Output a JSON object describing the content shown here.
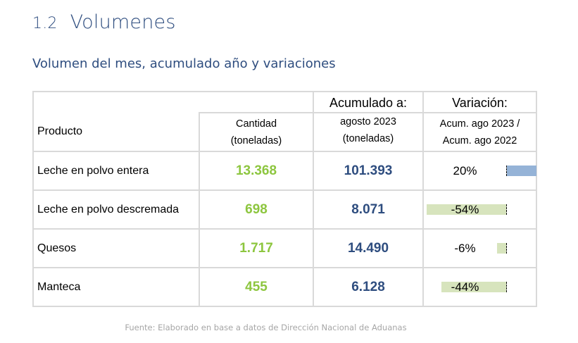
{
  "section": {
    "number": "1.2",
    "title": "Volumenes"
  },
  "subtitle": "Volumen del mes, acumulado año y variaciones",
  "table": {
    "header": {
      "product": "Producto",
      "cantidad_line1": "Cantidad",
      "cantidad_line2": "(toneladas)",
      "acumulado_title": "Acumulado a:",
      "acumulado_line1": "agosto 2023",
      "acumulado_line2": "(toneladas)",
      "variacion_title": "Variación:",
      "variacion_line1": "Acum. ago 2023 /",
      "variacion_line2": "Acum. ago 2022"
    },
    "rows": [
      {
        "product": "Leche en polvo entera",
        "cantidad": "13.368",
        "acumulado": "101.393",
        "variacion": "20%",
        "variacion_value": 20
      },
      {
        "product": "Leche en polvo descremada",
        "cantidad": "698",
        "acumulado": "8.071",
        "variacion": "-54%",
        "variacion_value": -54
      },
      {
        "product": "Quesos",
        "cantidad": "1.717",
        "acumulado": "14.490",
        "variacion": "-6%",
        "variacion_value": -6
      },
      {
        "product": "Manteca",
        "cantidad": "455",
        "acumulado": "6.128",
        "variacion": "-44%",
        "variacion_value": -44
      }
    ]
  },
  "source": "Fuente: Elaborado en base a datos de Dirección Nacional de Aduanas",
  "colors": {
    "title": "#2e4d7f",
    "cantidad": "#8dc63f",
    "acumulado": "#2e4d7f",
    "bar_negative": "#d7e4bd",
    "bar_positive": "#95b3d7",
    "source": "#a6a6a6"
  }
}
